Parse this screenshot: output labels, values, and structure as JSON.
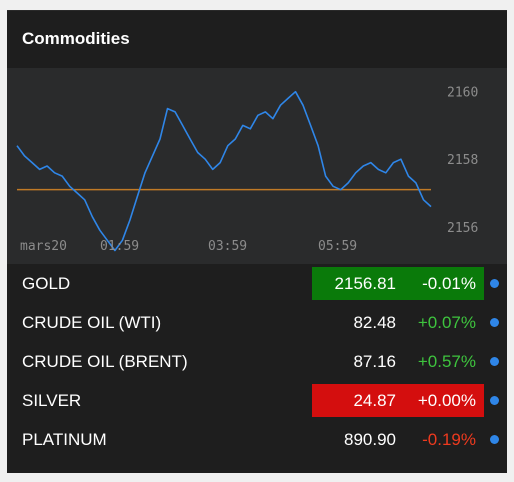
{
  "widget": {
    "title": "Commodities"
  },
  "chart_data": {
    "type": "line",
    "x_ticks": [
      "mars20",
      "01:59",
      "03:59",
      "05:59"
    ],
    "y_ticks": [
      2156,
      2158,
      2160
    ],
    "ylim": [
      2154.9,
      2160.7
    ],
    "reference_line": 2157.1,
    "colors": {
      "line": "#2f86e8",
      "reference": "#c07a26"
    },
    "series": [
      {
        "values": [
          2158.4,
          2158.1,
          2157.9,
          2157.7,
          2157.8,
          2157.6,
          2157.5,
          2157.2,
          2157.0,
          2156.8,
          2156.3,
          2155.9,
          2155.6,
          2155.3,
          2155.6,
          2156.2,
          2156.9,
          2157.6,
          2158.1,
          2158.6,
          2159.5,
          2159.4,
          2159.0,
          2158.6,
          2158.2,
          2158.0,
          2157.7,
          2157.9,
          2158.4,
          2158.6,
          2159.0,
          2158.9,
          2159.3,
          2159.4,
          2159.2,
          2159.6,
          2159.8,
          2160.0,
          2159.6,
          2159.0,
          2158.4,
          2157.5,
          2157.2,
          2157.1,
          2157.3,
          2157.6,
          2157.8,
          2157.9,
          2157.7,
          2157.6,
          2157.9,
          2158.0,
          2157.5,
          2157.3,
          2156.8,
          2156.6
        ]
      }
    ]
  },
  "rows": [
    {
      "name": "GOLD",
      "price": "2156.81",
      "change": "-0.01%",
      "highlight": "up",
      "change_tone": "white"
    },
    {
      "name": "CRUDE OIL (WTI)",
      "price": "82.48",
      "change": "+0.07%",
      "highlight": "none",
      "change_tone": "up"
    },
    {
      "name": "CRUDE OIL (BRENT)",
      "price": "87.16",
      "change": "+0.57%",
      "highlight": "none",
      "change_tone": "up"
    },
    {
      "name": "SILVER",
      "price": "24.87",
      "change": "+0.00%",
      "highlight": "down",
      "change_tone": "white"
    },
    {
      "name": "PLATINUM",
      "price": "890.90",
      "change": "-0.19%",
      "highlight": "none",
      "change_tone": "down"
    }
  ]
}
